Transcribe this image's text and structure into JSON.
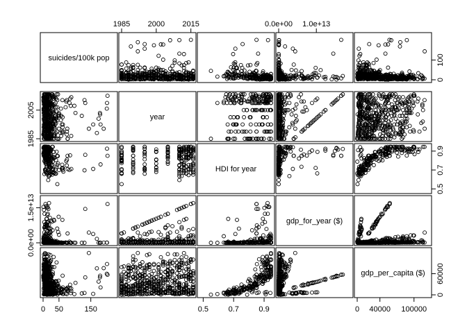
{
  "chart_data": {
    "type": "scatter",
    "subtype": "pairs-matrix",
    "variables": [
      {
        "name": "suicides/100k pop",
        "range": [
          0,
          225
        ],
        "ticks": [
          0,
          50,
          150
        ],
        "tick_labels": [
          "0",
          "50",
          "150"
        ],
        "tick_side": "bottom"
      },
      {
        "name": "year",
        "range": [
          1985,
          2016
        ],
        "ticks": [
          1985,
          2005
        ],
        "tick_labels": [
          "1985",
          "2005"
        ],
        "top_ticks": [
          1985,
          2000,
          2015
        ],
        "top_tick_labels": [
          "1985",
          "2000",
          "2015"
        ],
        "tick_side": "left"
      },
      {
        "name": "HDI for year",
        "range": [
          0.48,
          0.95
        ],
        "ticks": [
          0.5,
          0.7,
          0.9
        ],
        "tick_labels": [
          "0.5",
          "0.7",
          "0.9"
        ],
        "tick_side": "bottom",
        "right_ticks": [
          0.5,
          0.7,
          0.9
        ],
        "right_tick_labels": [
          "0.5",
          "0.7",
          "0.9"
        ]
      },
      {
        "name": "gdp_for_year ($)",
        "range": [
          0,
          19000000000000
        ],
        "ticks": [
          0,
          15000000000000
        ],
        "tick_labels": [
          "0.0e+00",
          "1.5e+13"
        ],
        "tick_side": "left",
        "top_ticks": [
          0,
          10000000000000
        ],
        "top_tick_labels": [
          "0.0e+00",
          "1.0e+13"
        ]
      },
      {
        "name": "gdp_per_capita ($)",
        "range": [
          0,
          126000
        ],
        "ticks": [
          0,
          40000,
          100000
        ],
        "tick_labels": [
          "0",
          "40000",
          "100000"
        ],
        "tick_side": "bottom",
        "right_ticks": [
          0,
          60000
        ],
        "right_tick_labels": [
          "0",
          "60000"
        ],
        "right_ticks_row0": [
          0,
          100
        ],
        "right_tick_labels_row0": [
          "0",
          "100"
        ]
      }
    ],
    "grid": false,
    "legend": "none"
  }
}
